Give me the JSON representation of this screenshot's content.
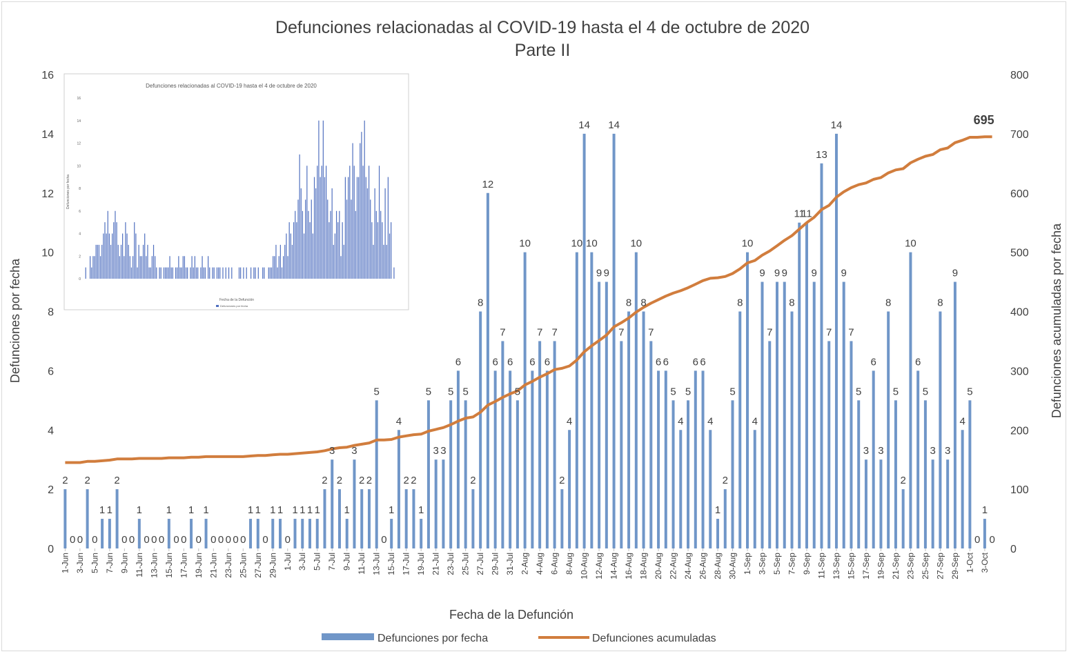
{
  "chart_data": [
    {
      "type": "bar+line",
      "title": "Defunciones relacionadas al COVID-19 hasta el 4 de octubre de 2020",
      "subtitle": "Parte II",
      "xlabel": "Fecha de la Defunción",
      "ylabel": "Defunciones por fecha",
      "y2label": "Defunciones acumuladas por fecha",
      "ylim": [
        0,
        16
      ],
      "y2lim": [
        0,
        800
      ],
      "yticks": [
        "0",
        "2",
        "4",
        "6",
        "8",
        "10",
        "12",
        "14",
        "16"
      ],
      "y2ticks": [
        "0",
        "100",
        "200",
        "300",
        "400",
        "500",
        "600",
        "700",
        "800"
      ],
      "x": [
        "1-Jun",
        "2-Jun",
        "3-Jun",
        "4-Jun",
        "5-Jun",
        "6-Jun",
        "7-Jun",
        "8-Jun",
        "9-Jun",
        "10-Jun",
        "11-Jun",
        "12-Jun",
        "13-Jun",
        "14-Jun",
        "15-Jun",
        "16-Jun",
        "17-Jun",
        "18-Jun",
        "19-Jun",
        "20-Jun",
        "21-Jun",
        "22-Jun",
        "23-Jun",
        "24-Jun",
        "25-Jun",
        "26-Jun",
        "27-Jun",
        "28-Jun",
        "29-Jun",
        "30-Jun",
        "1-Jul",
        "2-Jul",
        "3-Jul",
        "4-Jul",
        "5-Jul",
        "6-Jul",
        "7-Jul",
        "8-Jul",
        "9-Jul",
        "10-Jul",
        "11-Jul",
        "12-Jul",
        "13-Jul",
        "14-Jul",
        "15-Jul",
        "16-Jul",
        "17-Jul",
        "18-Jul",
        "19-Jul",
        "20-Jul",
        "21-Jul",
        "22-Jul",
        "23-Jul",
        "24-Jul",
        "25-Jul",
        "26-Jul",
        "27-Jul",
        "28-Jul",
        "29-Jul",
        "30-Jul",
        "31-Jul",
        "1-Aug",
        "2-Aug",
        "3-Aug",
        "4-Aug",
        "5-Aug",
        "6-Aug",
        "7-Aug",
        "8-Aug",
        "9-Aug",
        "10-Aug",
        "11-Aug",
        "12-Aug",
        "13-Aug",
        "14-Aug",
        "15-Aug",
        "16-Aug",
        "17-Aug",
        "18-Aug",
        "19-Aug",
        "20-Aug",
        "21-Aug",
        "22-Aug",
        "23-Aug",
        "24-Aug",
        "25-Aug",
        "26-Aug",
        "27-Aug",
        "28-Aug",
        "29-Aug",
        "30-Aug",
        "31-Aug",
        "1-Sep",
        "2-Sep",
        "3-Sep",
        "4-Sep",
        "5-Sep",
        "6-Sep",
        "7-Sep",
        "8-Sep",
        "9-Sep",
        "10-Sep",
        "11-Sep",
        "12-Sep",
        "13-Sep",
        "14-Sep",
        "15-Sep",
        "16-Sep",
        "17-Sep",
        "18-Sep",
        "19-Sep",
        "20-Sep",
        "21-Sep",
        "22-Sep",
        "23-Sep",
        "24-Sep",
        "25-Sep",
        "26-Sep",
        "27-Sep",
        "28-Sep",
        "29-Sep",
        "30-Sep",
        "1-Oct",
        "2-Oct",
        "3-Oct",
        "4-Oct"
      ],
      "series": [
        {
          "name": "Defunciones por fecha",
          "axis": "left",
          "color": "#7096c8",
          "values": [
            2,
            0,
            0,
            2,
            0,
            1,
            1,
            2,
            0,
            0,
            1,
            0,
            0,
            0,
            1,
            0,
            0,
            1,
            0,
            1,
            0,
            0,
            0,
            0,
            0,
            1,
            1,
            0,
            1,
            1,
            0,
            1,
            1,
            1,
            1,
            2,
            3,
            2,
            1,
            3,
            2,
            2,
            5,
            0,
            1,
            4,
            2,
            2,
            1,
            5,
            3,
            3,
            5,
            6,
            5,
            2,
            8,
            12,
            6,
            7,
            6,
            5,
            10,
            6,
            7,
            6,
            7,
            2,
            4,
            10,
            14,
            10,
            9,
            9,
            14,
            7,
            8,
            10,
            8,
            7,
            6,
            6,
            5,
            4,
            5,
            6,
            6,
            4,
            1,
            2,
            5,
            8,
            10,
            4,
            9,
            7,
            9,
            9,
            8,
            11,
            11,
            9,
            13,
            7,
            14,
            9,
            7,
            5,
            3,
            6,
            3,
            8,
            5,
            2,
            10,
            6,
            5,
            3,
            8,
            3,
            9,
            4,
            5,
            0,
            1,
            0
          ]
        },
        {
          "name": "Defunciones acumuladas",
          "axis": "right",
          "color": "#d17d3d",
          "values": [
            145,
            145,
            145,
            147,
            147,
            148,
            149,
            151,
            151,
            151,
            152,
            152,
            152,
            152,
            153,
            153,
            153,
            154,
            154,
            155,
            155,
            155,
            155,
            155,
            155,
            156,
            157,
            157,
            158,
            159,
            159,
            160,
            161,
            162,
            163,
            165,
            168,
            170,
            171,
            174,
            176,
            178,
            183,
            183,
            184,
            188,
            190,
            192,
            193,
            198,
            201,
            204,
            209,
            215,
            220,
            222,
            230,
            242,
            248,
            255,
            261,
            266,
            276,
            282,
            289,
            295,
            302,
            304,
            308,
            318,
            332,
            342,
            351,
            360,
            374,
            381,
            389,
            399,
            407,
            414,
            420,
            426,
            431,
            435,
            440,
            446,
            452,
            456,
            457,
            459,
            464,
            472,
            482,
            486,
            495,
            502,
            511,
            520,
            528,
            539,
            550,
            559,
            572,
            579,
            593,
            602,
            609,
            614,
            617,
            623,
            626,
            634,
            639,
            641,
            651,
            657,
            662,
            665,
            673,
            676,
            685,
            689,
            694,
            694,
            695,
            695
          ]
        }
      ],
      "bar_labels_shown": [
        2,
        0,
        0,
        2,
        0,
        1,
        1,
        2,
        0,
        0,
        1,
        0,
        0,
        0,
        1,
        0,
        0,
        1,
        0,
        1,
        0,
        0,
        0,
        0,
        0,
        1,
        1,
        0,
        1,
        1,
        0,
        1,
        1,
        1,
        1,
        2,
        3,
        2,
        1,
        3,
        2,
        2,
        5,
        0,
        1,
        4,
        2,
        2,
        1,
        5,
        3,
        3,
        5,
        6,
        5,
        2,
        8,
        12,
        6,
        7,
        6,
        5,
        10,
        6,
        7,
        6,
        7,
        2,
        4,
        10,
        14,
        10,
        9,
        9,
        14,
        7,
        8,
        10,
        8,
        7,
        6,
        6,
        5,
        4,
        5,
        6,
        6,
        4,
        1,
        2,
        5,
        8,
        10,
        4,
        9,
        7,
        9,
        9,
        8,
        11,
        11,
        9,
        13,
        7,
        14,
        9,
        7,
        5,
        3,
        6,
        3,
        8,
        5,
        2,
        10,
        6,
        5,
        3,
        8,
        3,
        9,
        4,
        5,
        0,
        1,
        0
      ],
      "final_label": "695",
      "legend": [
        "Defunciones por fecha",
        "Defunciones acumuladas"
      ],
      "legend_position": "bottom"
    },
    {
      "type": "bar",
      "role": "inset",
      "title": "Defunciones relacionadas al COVID-19 hasta el 4 de octubre de 2020",
      "xlabel": "Fecha de la Defunción",
      "ylabel": "Defunciones por fecha",
      "ylim": [
        0,
        16
      ],
      "yticks": [
        "0",
        "2",
        "4",
        "6",
        "8",
        "10",
        "12",
        "14",
        "16"
      ],
      "legend": [
        "Defunciones por fecha"
      ],
      "series": [
        {
          "name": "Defunciones por fecha",
          "color": "#4f6fbf",
          "values": [
            0,
            1,
            0,
            0,
            2,
            1,
            2,
            2,
            3,
            3,
            3,
            2,
            3,
            4,
            5,
            4,
            6,
            4,
            3,
            4,
            5,
            6,
            5,
            3,
            2,
            3,
            4,
            2,
            5,
            4,
            3,
            2,
            1,
            2,
            5,
            4,
            1,
            3,
            2,
            2,
            3,
            4,
            2,
            3,
            1,
            1,
            2,
            3,
            2,
            1,
            0,
            1,
            1,
            0,
            1,
            1,
            1,
            1,
            2,
            1,
            1,
            0,
            1,
            1,
            2,
            1,
            1,
            2,
            2,
            1,
            1,
            0,
            1,
            2,
            1,
            2,
            1,
            1,
            0,
            1,
            2,
            1,
            1,
            0,
            2,
            1,
            0,
            1,
            1,
            0,
            1,
            1,
            1,
            0,
            1,
            0,
            1,
            0,
            1,
            0,
            1,
            0,
            0,
            0,
            0,
            1,
            1,
            0,
            1,
            0,
            1,
            0,
            0,
            1,
            0,
            1,
            1,
            0,
            1,
            0,
            0,
            1,
            1,
            0,
            0,
            1,
            1,
            1,
            2,
            2,
            3,
            1,
            2,
            3,
            1,
            2,
            3,
            4,
            2,
            5,
            4,
            3,
            5,
            6,
            5,
            7,
            11,
            8,
            6,
            4,
            7,
            10,
            6,
            5,
            7,
            4,
            9,
            8,
            10,
            14,
            9,
            10,
            14,
            9,
            10,
            7,
            5,
            6,
            8,
            3,
            4,
            6,
            5,
            6,
            2,
            5,
            3,
            9,
            7,
            9,
            10,
            7,
            12,
            10,
            6,
            9,
            9,
            12,
            13,
            10,
            14,
            9,
            8,
            10,
            7,
            5,
            3,
            8,
            6,
            5,
            10,
            6,
            5,
            3,
            8,
            3,
            9,
            4,
            5,
            0,
            1
          ]
        }
      ]
    }
  ]
}
